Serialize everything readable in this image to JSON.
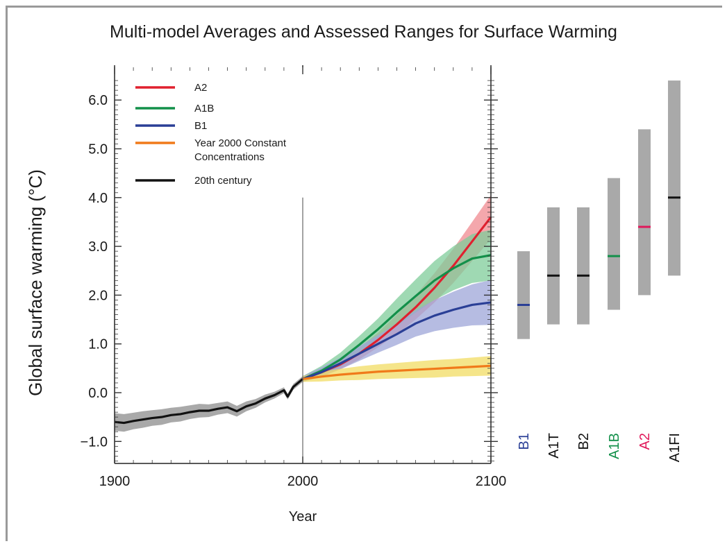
{
  "chart_data": {
    "type": "line",
    "title": "Multi-model Averages and Assessed Ranges for Surface Warming",
    "xlabel": "Year",
    "ylabel": "Global surface warming (°C)",
    "xlim": [
      1900,
      2100
    ],
    "ylim": [
      -1.45,
      6.5
    ],
    "x_ticks": [
      1900,
      2000,
      2100
    ],
    "y_ticks": [
      "-1.0",
      "0.0",
      "1.0",
      "2.0",
      "3.0",
      "4.0",
      "5.0",
      "6.0"
    ],
    "y_tick_values": [
      -1,
      0,
      1,
      2,
      3,
      4,
      5,
      6
    ],
    "legend_position": "top-left",
    "series": [
      {
        "name": "A2",
        "color": "#e0202f",
        "band_color": "#f08a90",
        "x": [
          2000,
          2010,
          2020,
          2030,
          2040,
          2050,
          2060,
          2070,
          2080,
          2090,
          2100
        ],
        "y": [
          0.28,
          0.42,
          0.58,
          0.8,
          1.08,
          1.4,
          1.75,
          2.15,
          2.6,
          3.1,
          3.6
        ],
        "spread": [
          0.06,
          0.08,
          0.1,
          0.12,
          0.15,
          0.2,
          0.25,
          0.3,
          0.35,
          0.4,
          0.45
        ]
      },
      {
        "name": "A1B",
        "color": "#13904a",
        "band_color": "#7fcc9a",
        "x": [
          2000,
          2010,
          2020,
          2030,
          2040,
          2050,
          2060,
          2070,
          2080,
          2090,
          2100
        ],
        "y": [
          0.28,
          0.45,
          0.68,
          0.98,
          1.3,
          1.65,
          1.98,
          2.3,
          2.55,
          2.75,
          2.82
        ],
        "spread": [
          0.06,
          0.1,
          0.14,
          0.18,
          0.22,
          0.28,
          0.34,
          0.4,
          0.45,
          0.5,
          0.52
        ]
      },
      {
        "name": "B1",
        "color": "#2a3f96",
        "band_color": "#9ea6d8",
        "x": [
          2000,
          2010,
          2020,
          2030,
          2040,
          2050,
          2060,
          2070,
          2080,
          2090,
          2100
        ],
        "y": [
          0.28,
          0.42,
          0.6,
          0.8,
          1.0,
          1.2,
          1.42,
          1.58,
          1.7,
          1.8,
          1.85
        ],
        "spread": [
          0.06,
          0.1,
          0.12,
          0.15,
          0.18,
          0.22,
          0.27,
          0.32,
          0.37,
          0.42,
          0.46
        ]
      },
      {
        "name": "Year 2000 Constant Concentrations",
        "color": "#f07a1a",
        "band_color": "#f1dc63",
        "x": [
          2000,
          2010,
          2020,
          2030,
          2040,
          2050,
          2060,
          2070,
          2080,
          2090,
          2100
        ],
        "y": [
          0.28,
          0.33,
          0.37,
          0.4,
          0.43,
          0.45,
          0.47,
          0.49,
          0.51,
          0.53,
          0.55
        ],
        "spread": [
          0.06,
          0.1,
          0.12,
          0.14,
          0.15,
          0.16,
          0.17,
          0.18,
          0.18,
          0.19,
          0.2
        ]
      },
      {
        "name": "20th century",
        "color": "#111111",
        "band_color": "#8c8c8c",
        "x": [
          1900,
          1905,
          1910,
          1915,
          1920,
          1925,
          1930,
          1935,
          1940,
          1945,
          1950,
          1955,
          1960,
          1965,
          1970,
          1975,
          1980,
          1985,
          1990,
          1992,
          1995,
          2000
        ],
        "y": [
          -0.6,
          -0.62,
          -0.58,
          -0.55,
          -0.52,
          -0.5,
          -0.46,
          -0.44,
          -0.4,
          -0.37,
          -0.37,
          -0.33,
          -0.3,
          -0.38,
          -0.28,
          -0.22,
          -0.12,
          -0.05,
          0.05,
          -0.08,
          0.12,
          0.28
        ],
        "spread": [
          0.18,
          0.18,
          0.17,
          0.17,
          0.16,
          0.16,
          0.15,
          0.15,
          0.14,
          0.14,
          0.13,
          0.12,
          0.12,
          0.11,
          0.1,
          0.09,
          0.08,
          0.07,
          0.06,
          0.06,
          0.06,
          0.06
        ]
      }
    ],
    "ranges": [
      {
        "name": "B1",
        "low": 1.1,
        "best": 1.8,
        "high": 2.9,
        "color": "#2a3f96"
      },
      {
        "name": "A1T",
        "low": 1.4,
        "best": 2.4,
        "high": 3.8,
        "color": "#111111"
      },
      {
        "name": "B2",
        "low": 1.4,
        "best": 2.4,
        "high": 3.8,
        "color": "#111111"
      },
      {
        "name": "A1B",
        "low": 1.7,
        "best": 2.8,
        "high": 4.4,
        "color": "#13904a"
      },
      {
        "name": "A2",
        "low": 2.0,
        "best": 3.4,
        "high": 5.4,
        "color": "#e0185a"
      },
      {
        "name": "A1FI",
        "low": 2.4,
        "best": 4.0,
        "high": 6.4,
        "color": "#111111"
      }
    ],
    "range_bar_color": "#a9a9a9",
    "divider_year": 2000,
    "divider_top": 4.0
  }
}
